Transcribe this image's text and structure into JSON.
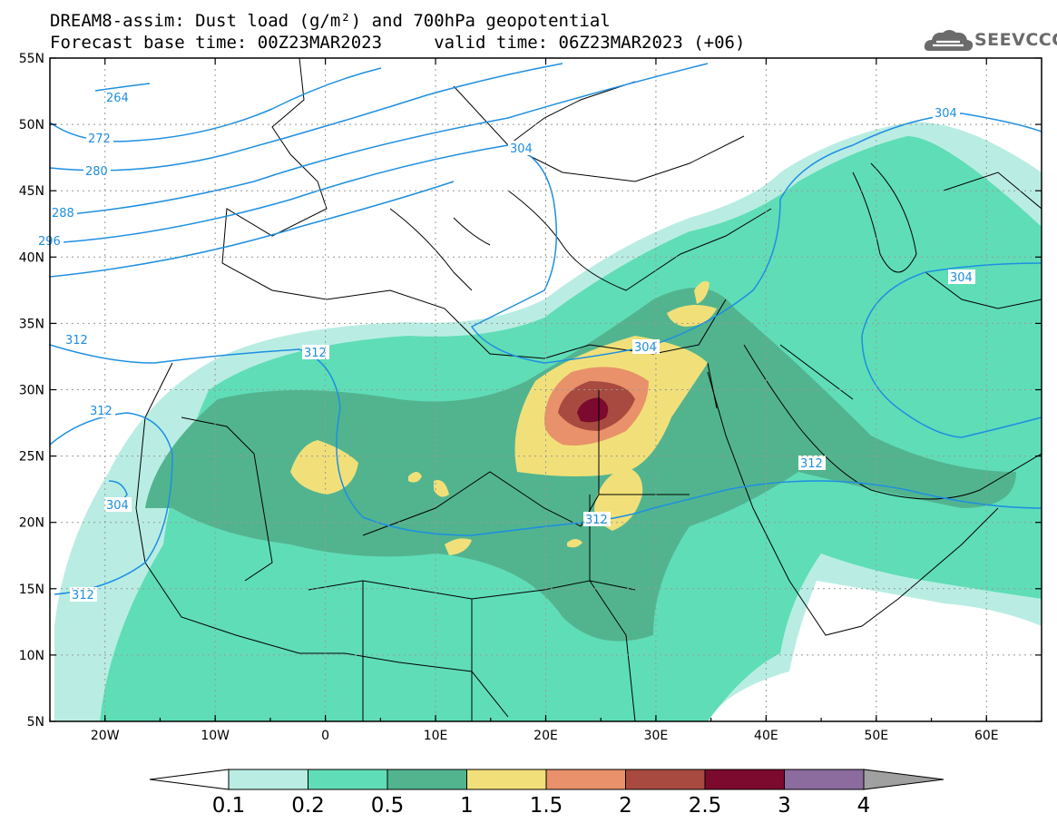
{
  "header": {
    "title_line1": "DREAM8-assim: Dust load (g/m²) and 700hPa geopotential",
    "title_line2": "Forecast base time: 00Z23MAR2023     valid time: 06Z23MAR2023 (+06)"
  },
  "logo": {
    "text": "SEEVCCC",
    "icon": "cloud-logo-icon"
  },
  "map": {
    "lat_labels": [
      "55N",
      "50N",
      "45N",
      "40N",
      "35N",
      "30N",
      "25N",
      "20N",
      "15N",
      "10N",
      "5N"
    ],
    "lon_labels": [
      "20W",
      "10W",
      "0",
      "10E",
      "20E",
      "30E",
      "40E",
      "50E",
      "60E"
    ],
    "lat_range": [
      5,
      55
    ],
    "lon_range": [
      -25,
      65
    ],
    "grid": "dotted",
    "contour_labels": [
      "264",
      "272",
      "280",
      "288",
      "296",
      "304",
      "312",
      "312",
      "312",
      "312",
      "304",
      "304",
      "304",
      "312",
      "304",
      "312"
    ],
    "contour_color": "#1E8FE0"
  },
  "colorbar": {
    "levels": [
      "0.1",
      "0.2",
      "0.5",
      "1",
      "1.5",
      "2",
      "2.5",
      "3",
      "4"
    ],
    "colors": [
      "#B9EDE3",
      "#5FDDB7",
      "#52B48F",
      "#F1E079",
      "#E8916A",
      "#A84A3F",
      "#7B0A2E",
      "#8C6B9E",
      "#A0A0A0"
    ]
  }
}
